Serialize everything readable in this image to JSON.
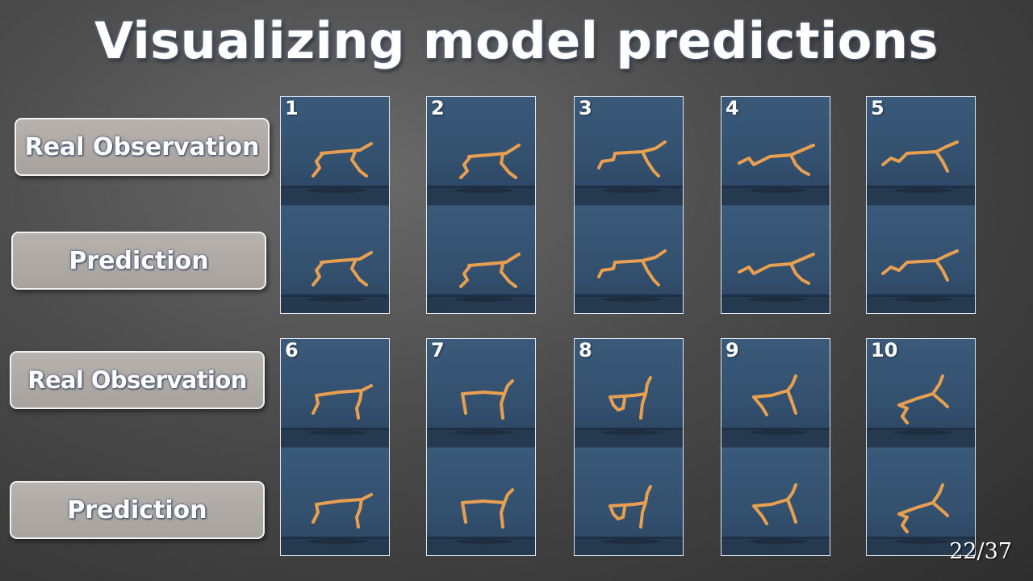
{
  "slide": {
    "title": "Visualizing model predictions",
    "page_number": "22/37"
  },
  "labels": {
    "row1_top": "Real Observation",
    "row1_bottom": "Prediction",
    "row2_top": "Real Observation",
    "row2_bottom": "Prediction"
  },
  "frames": [
    {
      "number": "1"
    },
    {
      "number": "2"
    },
    {
      "number": "3"
    },
    {
      "number": "4"
    },
    {
      "number": "5"
    },
    {
      "number": "6"
    },
    {
      "number": "7"
    },
    {
      "number": "8"
    },
    {
      "number": "9"
    },
    {
      "number": "10"
    }
  ],
  "colors": {
    "stick_figure": "#e8a050",
    "frame_background": "#3a5a7a",
    "label_box": "#aaa5a1"
  }
}
